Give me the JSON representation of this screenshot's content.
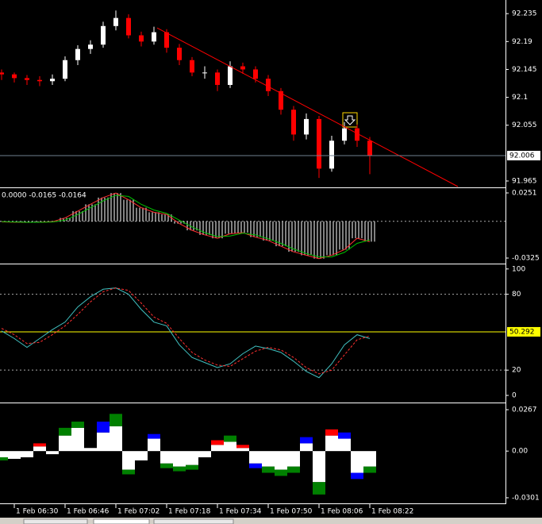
{
  "chart_data": [
    {
      "type": "candlestick",
      "x": [
        386,
        390,
        394,
        398,
        402,
        406,
        410,
        414,
        418,
        422,
        426,
        430,
        434,
        438,
        442,
        446,
        450,
        454,
        458,
        462,
        466,
        470,
        474,
        478,
        482,
        486,
        490,
        494,
        498,
        502
      ],
      "open": [
        92.14,
        92.137,
        92.131,
        92.128,
        92.126,
        92.13,
        92.16,
        92.178,
        92.185,
        92.215,
        92.228,
        92.2,
        92.19,
        92.205,
        92.18,
        92.16,
        92.14,
        92.14,
        92.12,
        92.15,
        92.145,
        92.13,
        92.11,
        92.08,
        92.04,
        92.065,
        91.985,
        92.03,
        92.05,
        92.03
      ],
      "high": [
        92.145,
        92.14,
        92.136,
        92.134,
        92.137,
        92.166,
        92.184,
        92.192,
        92.222,
        92.24,
        92.234,
        92.206,
        92.214,
        92.21,
        92.186,
        92.165,
        92.15,
        92.145,
        92.158,
        92.156,
        92.15,
        92.136,
        92.115,
        92.086,
        92.074,
        92.07,
        92.038,
        92.06,
        92.056,
        92.036
      ],
      "low": [
        92.128,
        92.124,
        92.12,
        92.118,
        92.12,
        92.126,
        92.152,
        92.17,
        92.18,
        92.208,
        92.195,
        92.182,
        92.185,
        92.172,
        92.152,
        92.134,
        92.13,
        92.11,
        92.115,
        92.138,
        92.124,
        92.102,
        92.072,
        92.03,
        92.032,
        91.97,
        91.98,
        92.024,
        92.02,
        91.976
      ],
      "close": [
        92.137,
        92.131,
        92.128,
        92.126,
        92.13,
        92.16,
        92.178,
        92.185,
        92.215,
        92.228,
        92.2,
        92.19,
        92.205,
        92.18,
        92.16,
        92.14,
        92.14,
        92.12,
        92.15,
        92.145,
        92.13,
        92.11,
        92.08,
        92.04,
        92.065,
        91.985,
        92.03,
        92.05,
        92.03,
        92.006
      ],
      "up_color": "#ffffff",
      "down_color": "#ff0000",
      "xlim": [
        385.5,
        544.75
      ],
      "xticks": [
        {
          "value": 390,
          "label": "1 Feb 06:30"
        },
        {
          "value": 406,
          "label": "1 Feb 06:46"
        },
        {
          "value": 422,
          "label": "1 Feb 07:02"
        },
        {
          "value": 438,
          "label": "1 Feb 07:18"
        },
        {
          "value": 454,
          "label": "1 Feb 07:34"
        },
        {
          "value": 470,
          "label": "1 Feb 07:50"
        },
        {
          "value": 486,
          "label": "1 Feb 08:06"
        },
        {
          "value": 502,
          "label": "1 Feb 08:22"
        }
      ],
      "ylim": [
        91.956,
        92.257
      ],
      "yticks": [
        92.235,
        92.19,
        92.145,
        92.1,
        92.055,
        91.965
      ],
      "price_line": 92.006,
      "price_label": "92.006",
      "trendline": {
        "x": [
          435,
          529.75
        ],
        "y": [
          92.212,
          91.956
        ],
        "color": "#ff0000"
      }
    },
    {
      "type": "macd",
      "label": "0.0000 -0.0165 -0.0164",
      "values": [
        -0.0005,
        -0.0008,
        -0.001,
        -0.0008,
        -0.0004,
        0.003,
        0.009,
        0.015,
        0.021,
        0.025,
        0.019,
        0.012,
        0.008,
        0.006,
        -0.002,
        -0.008,
        -0.012,
        -0.015,
        -0.011,
        -0.01,
        -0.014,
        -0.017,
        -0.022,
        -0.027,
        -0.03,
        -0.033,
        -0.03,
        -0.025,
        -0.015,
        -0.018
      ],
      "signal": [
        -0.0003,
        -0.0006,
        -0.0009,
        -0.0009,
        -0.0006,
        0.001,
        0.006,
        0.012,
        0.018,
        0.023,
        0.022,
        0.015,
        0.01,
        0.007,
        0.001,
        -0.005,
        -0.01,
        -0.0135,
        -0.013,
        -0.0105,
        -0.012,
        -0.0155,
        -0.0195,
        -0.0245,
        -0.0285,
        -0.0315,
        -0.0315,
        -0.0275,
        -0.0195,
        -0.0165
      ],
      "line_color": "#ff3030",
      "signal_color": "#00c000",
      "ylim": [
        -0.0367,
        0.0286
      ],
      "yticks": [
        0.0251,
        -0.0325
      ],
      "levels": [
        0
      ]
    },
    {
      "type": "stochastic",
      "main": [
        51,
        45,
        38,
        45,
        52,
        58,
        70,
        78,
        84,
        85,
        80,
        68,
        58,
        55,
        40,
        30,
        26,
        22,
        25,
        33,
        39,
        37,
        34,
        27,
        19,
        14,
        25,
        40,
        48,
        45
      ],
      "signal": [
        53,
        48,
        41,
        42,
        48,
        55,
        64,
        74,
        82,
        85,
        83,
        73,
        62,
        57,
        45,
        34,
        28,
        24,
        23,
        29,
        35,
        38,
        36,
        30,
        22,
        17,
        20,
        32,
        44,
        47
      ],
      "main_color": "#40c0c0",
      "signal_color": "#ff3030",
      "ylim": [
        -5,
        103
      ],
      "yticks": [
        100,
        80,
        20,
        0
      ],
      "levels": [
        80,
        20
      ],
      "current": 50.292,
      "current_label": "50.292",
      "current_color": "#ffff00"
    },
    {
      "type": "histogram",
      "values": [
        -0.004,
        -0.005,
        -0.004,
        0.003,
        -0.002,
        0.01,
        0.015,
        0.002,
        0.012,
        0.016,
        -0.012,
        -0.006,
        0.008,
        -0.008,
        -0.01,
        -0.009,
        -0.004,
        0.004,
        0.006,
        0.002,
        -0.008,
        -0.01,
        -0.012,
        -0.01,
        0.005,
        -0.02,
        0.01,
        0.008,
        -0.014,
        -0.01
      ],
      "tip_values": [
        -0.002,
        0,
        0,
        0.002,
        0,
        0.005,
        0.004,
        0,
        0.007,
        0.008,
        -0.003,
        0,
        0.003,
        -0.003,
        -0.003,
        -0.003,
        0,
        0.003,
        0.004,
        0.002,
        -0.003,
        -0.004,
        -0.004,
        -0.004,
        0.004,
        -0.008,
        0.004,
        0.004,
        -0.004,
        -0.004
      ],
      "tip_colors": [
        "#008000",
        "#008000",
        "#008000",
        "#ff0000",
        "#008000",
        "#008000",
        "#008000",
        "#ff0000",
        "#0000ff",
        "#008000",
        "#008000",
        "#008000",
        "#0000ff",
        "#008000",
        "#008000",
        "#008000",
        "#008000",
        "#ff0000",
        "#008000",
        "#ff0000",
        "#0000ff",
        "#008000",
        "#008000",
        "#008000",
        "#0000ff",
        "#008000",
        "#ff0000",
        "#0000ff",
        "#0000ff",
        "#008000"
      ],
      "color": "#ffffff",
      "ylim": [
        -0.0332,
        0.0303
      ],
      "yticks": [
        0.0267,
        {
          "value": 0,
          "label": "0.00"
        },
        -0.0301
      ]
    }
  ]
}
